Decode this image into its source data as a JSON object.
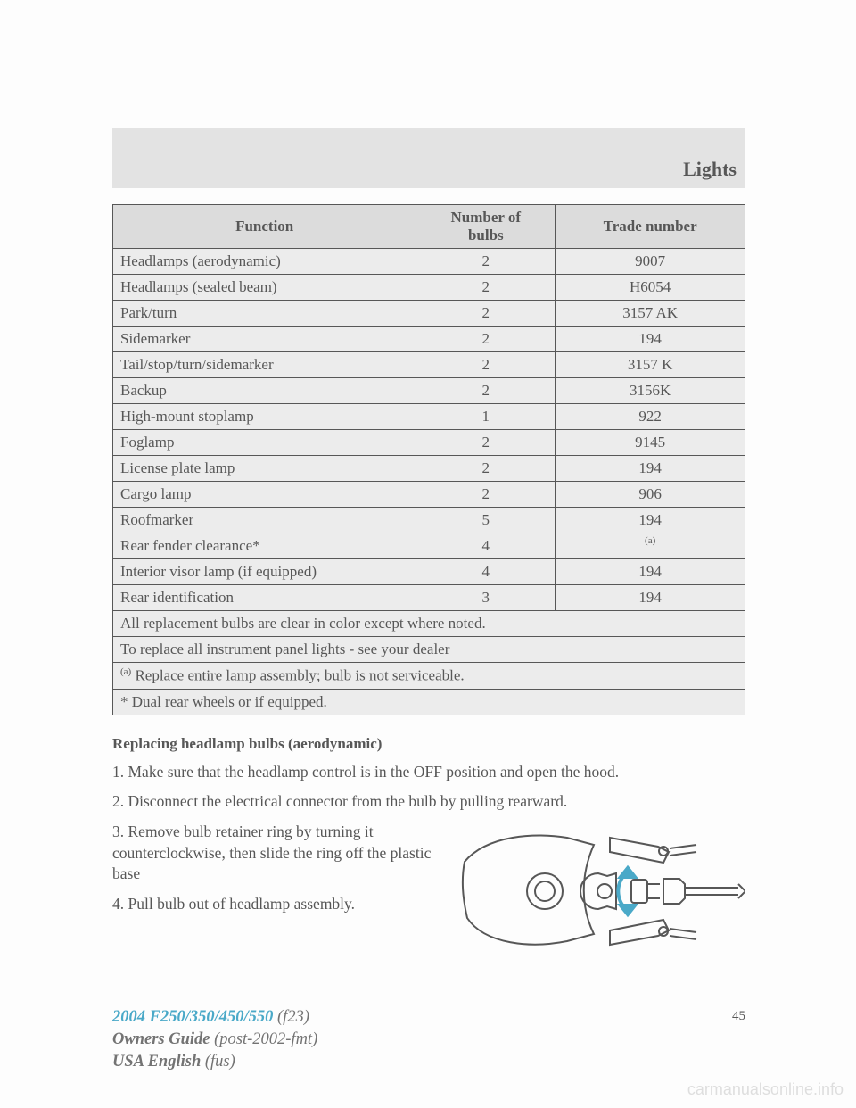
{
  "header": {
    "section": "Lights"
  },
  "table": {
    "headers": {
      "fn": "Function",
      "nb": "Number of\nbulbs",
      "tn": "Trade number"
    },
    "rows": [
      {
        "fn": "Headlamps (aerodynamic)",
        "nb": "2",
        "tn": "9007"
      },
      {
        "fn": "Headlamps (sealed beam)",
        "nb": "2",
        "tn": "H6054"
      },
      {
        "fn": "Park/turn",
        "nb": "2",
        "tn": "3157 AK"
      },
      {
        "fn": "Sidemarker",
        "nb": "2",
        "tn": "194"
      },
      {
        "fn": "Tail/stop/turn/sidemarker",
        "nb": "2",
        "tn": "3157 K"
      },
      {
        "fn": "Backup",
        "nb": "2",
        "tn": "3156K"
      },
      {
        "fn": "High-mount stoplamp",
        "nb": "1",
        "tn": "922"
      },
      {
        "fn": "Foglamp",
        "nb": "2",
        "tn": "9145"
      },
      {
        "fn": "License plate lamp",
        "nb": "2",
        "tn": "194"
      },
      {
        "fn": "Cargo lamp",
        "nb": "2",
        "tn": "906"
      },
      {
        "fn": "Roofmarker",
        "nb": "5",
        "tn": "194"
      },
      {
        "fn": "Rear fender clearance*",
        "nb": "4",
        "tn": "(a)",
        "tn_sup": true
      },
      {
        "fn": "Interior visor lamp (if equipped)",
        "nb": "4",
        "tn": "194"
      },
      {
        "fn": "Rear identification",
        "nb": "3",
        "tn": "194"
      }
    ],
    "notes": [
      {
        "text": "All replacement bulbs are clear in color except where noted."
      },
      {
        "text": "To replace all instrument panel lights - see your dealer"
      },
      {
        "sup": "(a)",
        "text": " Replace entire lamp assembly; bulb is not serviceable."
      },
      {
        "text": "* Dual rear wheels or if equipped."
      }
    ]
  },
  "section_heading": "Replacing headlamp bulbs (aerodynamic)",
  "steps": {
    "s1": "1. Make sure that the headlamp control is in the OFF position and open the hood.",
    "s2": "2. Disconnect the electrical connector from the bulb by pulling rearward.",
    "s3": "3. Remove bulb retainer ring by turning it counterclockwise, then slide the ring off the plastic base",
    "s4": "4. Pull bulb out of headlamp assembly."
  },
  "page_number": "45",
  "footer": {
    "model": "2004 F250/350/450/550",
    "model_code": "(f23)",
    "guide": "Owners Guide",
    "guide_code": "(post-2002-fmt)",
    "lang": "USA English",
    "lang_code": "(fus)"
  },
  "watermark": "carmanualsonline.info"
}
